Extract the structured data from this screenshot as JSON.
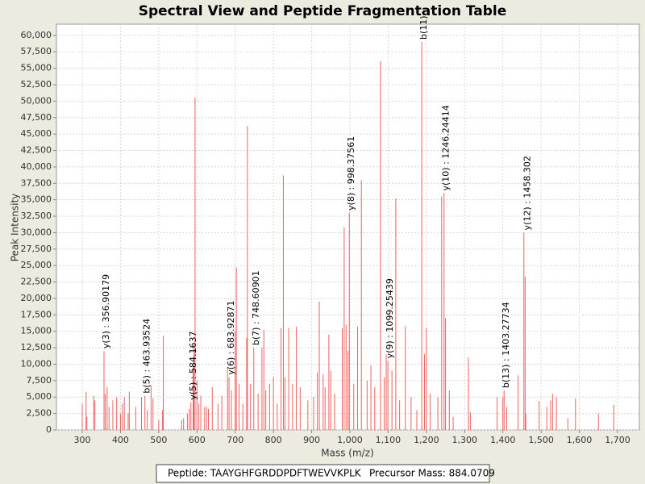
{
  "chart_data": {
    "type": "spectrum",
    "title": "Spectral View and Peptide Fragmentation Table",
    "x_label": "Mass (m/z)",
    "y_label": "Peak Intensity",
    "color": "#f06060",
    "grid": true,
    "xlim": [
      232.5,
      1757
    ],
    "ylim": [
      0,
      61700
    ],
    "xticks": [
      300,
      400,
      500,
      600,
      700,
      800,
      900,
      {
        "value": 1000,
        "label": "1,000"
      },
      {
        "value": 1100,
        "label": "1,100"
      },
      {
        "value": 1200,
        "label": "1,200"
      },
      {
        "value": 1300,
        "label": "1,300"
      },
      {
        "value": 1400,
        "label": "1,400"
      },
      {
        "value": 1500,
        "label": "1,500"
      },
      {
        "value": 1600,
        "label": "1,600"
      },
      {
        "value": 1700,
        "label": "1,700"
      }
    ],
    "yticks": [
      0,
      {
        "value": 2500,
        "label": "2,500"
      },
      {
        "value": 5000,
        "label": "5,000"
      },
      {
        "value": 7500,
        "label": "7,500"
      },
      {
        "value": 10000,
        "label": "10,000"
      },
      {
        "value": 12500,
        "label": "12,500"
      },
      {
        "value": 15000,
        "label": "15,000"
      },
      {
        "value": 17500,
        "label": "17,500"
      },
      {
        "value": 20000,
        "label": "20,000"
      },
      {
        "value": 22500,
        "label": "22,500"
      },
      {
        "value": 25000,
        "label": "25,000"
      },
      {
        "value": 27500,
        "label": "27,500"
      },
      {
        "value": 30000,
        "label": "30,000"
      },
      {
        "value": 32500,
        "label": "32,500"
      },
      {
        "value": 35000,
        "label": "35,000"
      },
      {
        "value": 37500,
        "label": "37,500"
      },
      {
        "value": 40000,
        "label": "40,000"
      },
      {
        "value": 42500,
        "label": "42,500"
      },
      {
        "value": 45000,
        "label": "45,000"
      },
      {
        "value": 47500,
        "label": "47,500"
      },
      {
        "value": 50000,
        "label": "50,000"
      },
      {
        "value": 52500,
        "label": "52,500"
      },
      {
        "value": 55000,
        "label": "55,000"
      },
      {
        "value": 57500,
        "label": "57,500"
      },
      {
        "value": 60000,
        "label": "60,000"
      }
    ],
    "x": [
      300,
      310,
      312,
      330,
      333,
      356.9,
      360,
      365,
      370,
      380,
      390,
      400,
      405,
      410,
      420,
      423,
      440,
      455,
      463.9,
      470,
      480,
      485,
      500,
      510,
      512,
      560,
      565,
      575,
      580,
      584.2,
      590,
      592,
      595,
      600,
      605,
      610,
      620,
      625,
      630,
      640,
      655,
      665,
      680,
      683.9,
      690,
      700,
      703,
      710,
      720,
      730,
      732,
      740,
      748.6,
      760,
      770,
      775,
      780,
      790,
      800,
      810,
      820,
      826,
      830,
      840,
      850,
      860,
      870,
      890,
      905,
      915,
      920,
      930,
      935,
      945,
      950,
      960,
      980,
      985,
      990,
      995,
      998.4,
      1010,
      1020,
      1030,
      1045,
      1055,
      1065,
      1080,
      1090,
      1095,
      1099.3,
      1110,
      1120,
      1130,
      1145,
      1160,
      1175,
      1188,
      1195,
      1200,
      1210,
      1230,
      1240,
      1246.2,
      1250,
      1260,
      1270,
      1310,
      1315,
      1385,
      1400,
      1403.3,
      1410,
      1440,
      1455,
      1458.3,
      1460,
      1495,
      1515,
      1525,
      1530,
      1540,
      1570,
      1590,
      1650,
      1690
    ],
    "values": [
      4000,
      5800,
      2000,
      5200,
      4500,
      12000,
      5500,
      6500,
      3500,
      4500,
      5000,
      2500,
      4000,
      5000,
      2500,
      5800,
      3500,
      5000,
      5200,
      3000,
      6700,
      4800,
      1500,
      3000,
      14300,
      1500,
      1800,
      2500,
      3200,
      4200,
      9500,
      13000,
      50500,
      7500,
      4000,
      5200,
      3500,
      3500,
      3200,
      6500,
      4000,
      5200,
      9500,
      8000,
      6000,
      15000,
      24700,
      7000,
      4000,
      14000,
      46200,
      7000,
      12500,
      5500,
      12500,
      15200,
      6000,
      7000,
      8000,
      4000,
      15500,
      38700,
      8000,
      15500,
      7000,
      15700,
      6500,
      4500,
      5000,
      8700,
      19500,
      8500,
      6500,
      14500,
      9000,
      5500,
      15500,
      30800,
      16000,
      12000,
      33000,
      7000,
      15700,
      38000,
      7500,
      9800,
      6500,
      56100,
      8000,
      11500,
      10500,
      9000,
      35200,
      4500,
      15800,
      5000,
      3000,
      59000,
      11500,
      15500,
      5500,
      5000,
      35500,
      36000,
      17000,
      6000,
      2000,
      11000,
      2700,
      5000,
      5000,
      6000,
      3500,
      8300,
      30000,
      23300,
      2500,
      4400,
      3500,
      4500,
      5500,
      5000,
      1800,
      4800,
      2500,
      3800
    ],
    "annotations": [
      {
        "x": 356.9,
        "y": 12000,
        "label": "y(3) : 356.90179"
      },
      {
        "x": 463.9,
        "y": 5200,
        "label": "b(5) : 463.93524"
      },
      {
        "x": 584.2,
        "y": 4200,
        "label": "y(5) : 584.1637"
      },
      {
        "x": 683.9,
        "y": 8000,
        "label": "y(6) : 683.92871"
      },
      {
        "x": 748.6,
        "y": 12500,
        "label": "b(7) : 748.60901"
      },
      {
        "x": 998.4,
        "y": 33000,
        "label": "y(8) : 998.37561"
      },
      {
        "x": 1099.3,
        "y": 10500,
        "label": "y(9) : 1099.25439"
      },
      {
        "x": 1188,
        "y": 59000,
        "label": "b(11)"
      },
      {
        "x": 1246.2,
        "y": 36000,
        "label": "y(10) : 1246.24414"
      },
      {
        "x": 1403.3,
        "y": 6000,
        "label": "b(13) : 1403.27734"
      },
      {
        "x": 1458.3,
        "y": 30000,
        "label": "y(12) : 1458.302"
      }
    ],
    "footer": {
      "peptide": "Peptide: TAAYGHFGRDDPDFTWEVVKPLK",
      "precursor": "Precursor Mass: 884.0709"
    }
  }
}
